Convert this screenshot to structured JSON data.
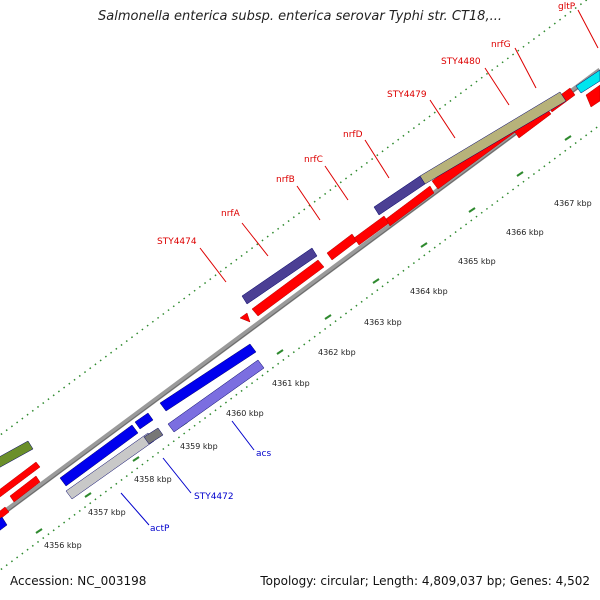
{
  "title": "Salmonella enterica subsp. enterica serovar Typhi str. CT18,...",
  "accession_text": "Accession: NC_003198",
  "topology_text": "Topology: circular; Length: 4,809,037 bp; Genes: 4,502",
  "colors": {
    "backbone": "#9a9a9a",
    "forward_tick": "#2f8a2f",
    "red_gene": "#ff0000",
    "blue_gene": "#0000ee",
    "lightblue_gene": "#7b6ee0",
    "navy_gene": "#4b3f94",
    "olive_gene": "#b7b27a",
    "cyan_gene": "#00e5ee",
    "grey_gene": "#c8c8c8",
    "green_gene": "#6b8f2a",
    "red_label": "#dd0000",
    "blue_label": "#0000cc"
  },
  "scale_labels": [
    "4356 kbp",
    "4357 kbp",
    "4358 kbp",
    "4359 kbp",
    "4360 kbp",
    "4361 kbp",
    "4362 kbp",
    "4363 kbp",
    "4364 kbp",
    "4365 kbp",
    "4366 kbp",
    "4367 kbp"
  ],
  "gene_labels_top": [
    "STY4474",
    "nrfA",
    "nrfB",
    "nrfC",
    "nrfD",
    "STY4479",
    "STY4480",
    "nrfG",
    "gltP"
  ],
  "gene_labels_bottom": [
    "actP",
    "STY4472",
    "acs"
  ]
}
